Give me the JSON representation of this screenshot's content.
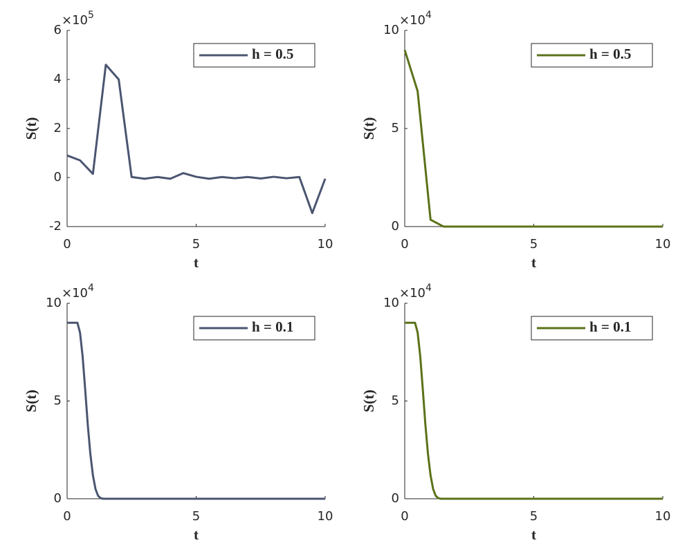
{
  "chart_data": [
    {
      "type": "line",
      "xlabel": "t",
      "ylabel": "S(t)",
      "y_scale": {
        "base": "×10",
        "exponent": "5"
      },
      "x": [
        0,
        0.5,
        1,
        1.5,
        2,
        2.5,
        3,
        3.5,
        4,
        4.5,
        5,
        5.5,
        6,
        6.5,
        7,
        7.5,
        8,
        8.5,
        9,
        9.5,
        10
      ],
      "series": [
        {
          "name": "h = 0.5",
          "color": "#4a5570",
          "values": [
            0.9,
            0.7,
            0.15,
            4.6,
            4.0,
            0.02,
            -0.05,
            0.02,
            -0.05,
            0.18,
            0.03,
            -0.05,
            0.02,
            -0.03,
            0.02,
            -0.04,
            0.03,
            -0.03,
            0.02,
            -1.45,
            -0.05
          ]
        }
      ],
      "xlim": [
        0,
        10
      ],
      "ylim": [
        -2,
        6
      ],
      "xticks": [
        0,
        5,
        10
      ],
      "yticks": [
        -2,
        0,
        2,
        4,
        6
      ],
      "legend": "upper right"
    },
    {
      "type": "line",
      "xlabel": "t",
      "ylabel": "S(t)",
      "y_scale": {
        "base": "×10",
        "exponent": "4"
      },
      "x": [
        0,
        0.5,
        1,
        1.5,
        2,
        2.5,
        3,
        3.5,
        4,
        4.5,
        5,
        5.5,
        6,
        6.5,
        7,
        7.5,
        8,
        8.5,
        9,
        9.5,
        10
      ],
      "series": [
        {
          "name": "h = 0.5",
          "color": "#5a7219",
          "values": [
            9,
            6.9,
            0.35,
            0,
            0,
            0,
            0,
            0,
            0,
            0,
            0,
            0,
            0,
            0,
            0,
            0,
            0,
            0,
            0,
            0,
            0
          ]
        }
      ],
      "xlim": [
        0,
        10
      ],
      "ylim": [
        0,
        10
      ],
      "xticks": [
        0,
        5,
        10
      ],
      "yticks": [
        0,
        5,
        10
      ],
      "legend": "upper right"
    },
    {
      "type": "line",
      "xlabel": "t",
      "ylabel": "S(t)",
      "y_scale": {
        "base": "×10",
        "exponent": "4"
      },
      "x": [
        0,
        0.1,
        0.2,
        0.3,
        0.4,
        0.5,
        0.6,
        0.7,
        0.8,
        0.9,
        1,
        1.1,
        1.2,
        1.3,
        1.4,
        1.5,
        1.6,
        1.7,
        1.8,
        1.9,
        2,
        2.1,
        2.2,
        2.3,
        2.4,
        2.5,
        2.6,
        2.7,
        2.8,
        2.9,
        3,
        3.1,
        3.2,
        3.3,
        3.4,
        3.5,
        3.6,
        3.7,
        3.8,
        3.9,
        4,
        4.1,
        4.2,
        4.3,
        4.4,
        4.5,
        4.6,
        4.7,
        4.8,
        4.9,
        5,
        5.1,
        5.2,
        5.3,
        5.4,
        5.5,
        5.6,
        5.7,
        5.8,
        5.9,
        6,
        6.1,
        6.2,
        6.3,
        6.4,
        6.5,
        6.6,
        6.7,
        6.8,
        6.9,
        7,
        7.1,
        7.2,
        7.3,
        7.4,
        7.5,
        7.6,
        7.7,
        7.8,
        7.9,
        8,
        8.1,
        8.2,
        8.3,
        8.4,
        8.5,
        8.6,
        8.7,
        8.8,
        8.9,
        9,
        9.1,
        9.2,
        9.3,
        9.4,
        9.5,
        9.6,
        9.7,
        9.8,
        9.9,
        10
      ],
      "series": [
        {
          "name": "h = 0.1",
          "color": "#4a5570",
          "values": [
            9,
            9,
            9,
            9,
            9,
            8.5,
            7.3,
            5.6,
            3.8,
            2.3,
            1.2,
            0.5,
            0.15,
            0.03,
            0,
            0,
            0,
            0,
            0,
            0,
            0,
            0,
            0,
            0,
            0,
            0,
            0,
            0,
            0,
            0,
            0,
            0,
            0,
            0,
            0,
            0,
            0,
            0,
            0,
            0,
            0,
            0,
            0,
            0,
            0,
            0,
            0,
            0,
            0,
            0,
            0,
            0,
            0,
            0,
            0,
            0,
            0,
            0,
            0,
            0,
            0,
            0,
            0,
            0,
            0,
            0,
            0,
            0,
            0,
            0,
            0,
            0,
            0,
            0,
            0,
            0,
            0,
            0,
            0,
            0,
            0,
            0,
            0,
            0,
            0,
            0,
            0,
            0,
            0,
            0,
            0,
            0,
            0,
            0,
            0,
            0,
            0,
            0,
            0,
            0,
            0
          ]
        }
      ],
      "xlim": [
        0,
        10
      ],
      "ylim": [
        0,
        10
      ],
      "xticks": [
        0,
        5,
        10
      ],
      "yticks": [
        0,
        5,
        10
      ],
      "legend": "upper right"
    },
    {
      "type": "line",
      "xlabel": "t",
      "ylabel": "S(t)",
      "y_scale": {
        "base": "×10",
        "exponent": "4"
      },
      "x": [
        0,
        0.1,
        0.2,
        0.3,
        0.4,
        0.5,
        0.6,
        0.7,
        0.8,
        0.9,
        1,
        1.1,
        1.2,
        1.3,
        1.4,
        1.5,
        1.6,
        1.7,
        1.8,
        1.9,
        2,
        2.1,
        2.2,
        2.3,
        2.4,
        2.5,
        2.6,
        2.7,
        2.8,
        2.9,
        3,
        3.1,
        3.2,
        3.3,
        3.4,
        3.5,
        3.6,
        3.7,
        3.8,
        3.9,
        4,
        4.1,
        4.2,
        4.3,
        4.4,
        4.5,
        4.6,
        4.7,
        4.8,
        4.9,
        5,
        5.1,
        5.2,
        5.3,
        5.4,
        5.5,
        5.6,
        5.7,
        5.8,
        5.9,
        6,
        6.1,
        6.2,
        6.3,
        6.4,
        6.5,
        6.6,
        6.7,
        6.8,
        6.9,
        7,
        7.1,
        7.2,
        7.3,
        7.4,
        7.5,
        7.6,
        7.7,
        7.8,
        7.9,
        8,
        8.1,
        8.2,
        8.3,
        8.4,
        8.5,
        8.6,
        8.7,
        8.8,
        8.9,
        9,
        9.1,
        9.2,
        9.3,
        9.4,
        9.5,
        9.6,
        9.7,
        9.8,
        9.9,
        10
      ],
      "series": [
        {
          "name": "h = 0.1",
          "color": "#5a7219",
          "values": [
            9,
            9,
            9,
            9,
            9,
            8.5,
            7.3,
            5.6,
            3.8,
            2.3,
            1.2,
            0.5,
            0.15,
            0.03,
            0,
            0,
            0,
            0,
            0,
            0,
            0,
            0,
            0,
            0,
            0,
            0,
            0,
            0,
            0,
            0,
            0,
            0,
            0,
            0,
            0,
            0,
            0,
            0,
            0,
            0,
            0,
            0,
            0,
            0,
            0,
            0,
            0,
            0,
            0,
            0,
            0,
            0,
            0,
            0,
            0,
            0,
            0,
            0,
            0,
            0,
            0,
            0,
            0,
            0,
            0,
            0,
            0,
            0,
            0,
            0,
            0,
            0,
            0,
            0,
            0,
            0,
            0,
            0,
            0,
            0,
            0,
            0,
            0,
            0,
            0,
            0,
            0,
            0,
            0,
            0,
            0,
            0,
            0,
            0,
            0,
            0,
            0,
            0,
            0,
            0,
            0
          ]
        }
      ],
      "xlim": [
        0,
        10
      ],
      "ylim": [
        0,
        10
      ],
      "xticks": [
        0,
        5,
        10
      ],
      "yticks": [
        0,
        5,
        10
      ],
      "legend": "upper right"
    }
  ]
}
